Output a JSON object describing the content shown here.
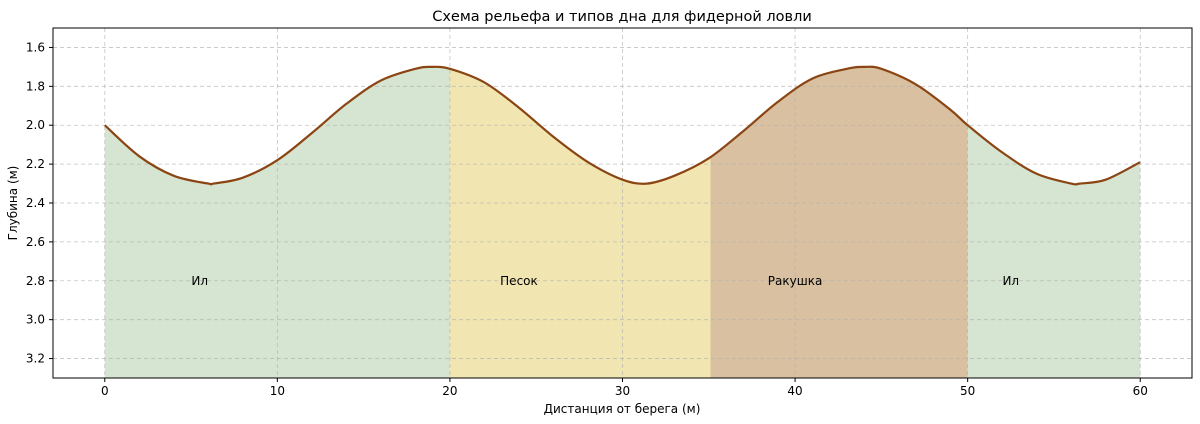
{
  "chart_data": {
    "type": "area",
    "title": "Схема рельефа и типов дна для фидерной ловли",
    "xlabel": "Дистанция от берега (м)",
    "ylabel": "Глубина (м)",
    "xlim": [
      -3,
      63
    ],
    "ylim": [
      3.3,
      1.5
    ],
    "y_inverted": true,
    "grid": true,
    "x_ticks": [
      0,
      10,
      20,
      30,
      40,
      50,
      60
    ],
    "y_ticks": [
      1.6,
      1.8,
      2.0,
      2.2,
      2.4,
      2.6,
      2.8,
      3.0,
      3.2
    ],
    "y_tick_labels": [
      "1.6",
      "1.8",
      "2.0",
      "2.2",
      "2.4",
      "2.6",
      "2.8",
      "3.0",
      "3.2"
    ],
    "profile": {
      "color": "#8B4513",
      "x": [
        0,
        2,
        4,
        6,
        6.3,
        8,
        10,
        12,
        14,
        16,
        18,
        18.9,
        20,
        22,
        24,
        26,
        28,
        30,
        31.4,
        33,
        35,
        37,
        39,
        41,
        43,
        44.0,
        45,
        47,
        49,
        50,
        52,
        54,
        56,
        56.5,
        58,
        60
      ],
      "depth": [
        2.0,
        2.16,
        2.26,
        2.3,
        2.3,
        2.27,
        2.18,
        2.04,
        1.89,
        1.77,
        1.71,
        1.7,
        1.71,
        1.78,
        1.91,
        2.06,
        2.19,
        2.28,
        2.3,
        2.26,
        2.17,
        2.03,
        1.88,
        1.76,
        1.71,
        1.7,
        1.71,
        1.79,
        1.92,
        2.0,
        2.14,
        2.25,
        2.3,
        2.3,
        2.28,
        2.19
      ]
    },
    "zones": [
      {
        "label": "Ил",
        "x_start": 0,
        "x_end": 20,
        "color": "#d6e4d2",
        "label_x": 5.5,
        "label_depth": 2.8
      },
      {
        "label": "Песок",
        "x_start": 20,
        "x_end": 35.1,
        "color": "#f1e6b2",
        "label_x": 24,
        "label_depth": 2.8
      },
      {
        "label": "Ракушка",
        "x_start": 35.1,
        "x_end": 50,
        "color": "#d9c0a0",
        "label_x": 40,
        "label_depth": 2.8
      },
      {
        "label": "Ил",
        "x_start": 50,
        "x_end": 60,
        "color": "#d6e4d2",
        "label_x": 52.5,
        "label_depth": 2.8
      }
    ]
  }
}
